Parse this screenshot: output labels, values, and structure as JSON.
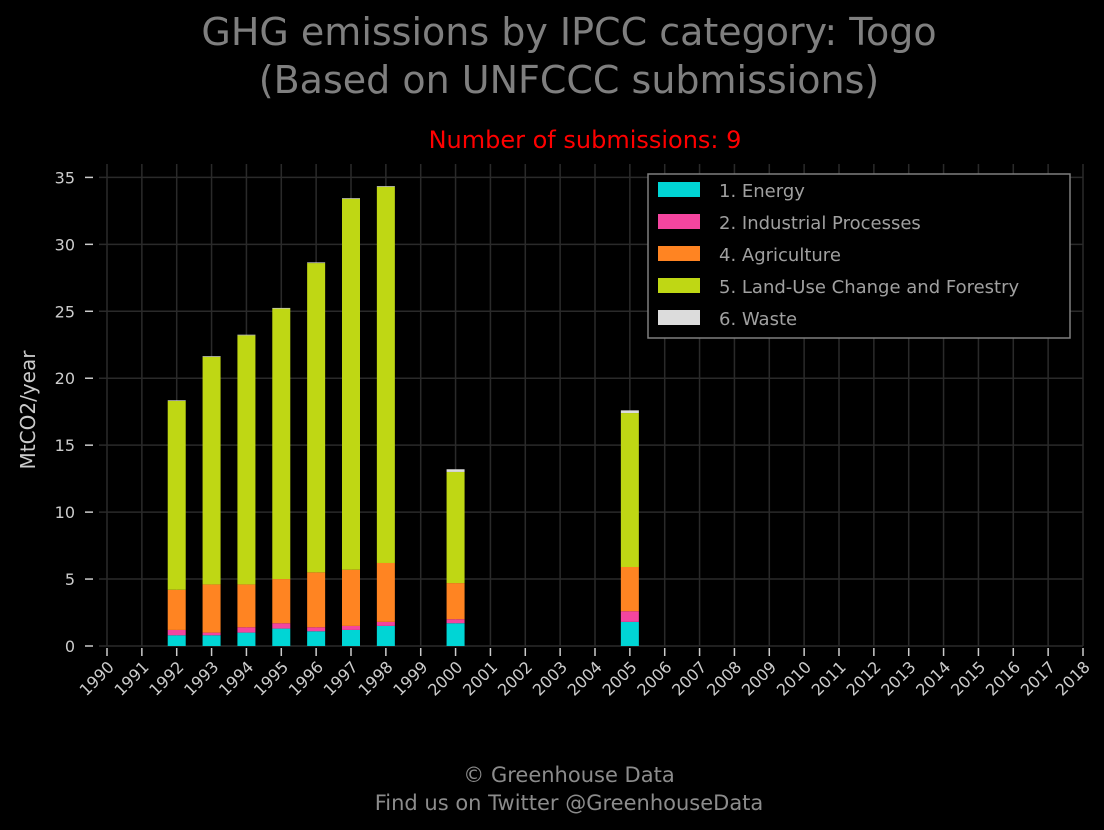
{
  "chart_data": {
    "type": "bar",
    "stacked": true,
    "title_line1": "GHG emissions by IPCC category: Togo",
    "title_line2": "(Based on UNFCCC submissions)",
    "subtitle": "Number of submissions: 9",
    "ylabel": "MtCO2/year",
    "ylim": [
      0,
      36
    ],
    "yticks": [
      0,
      5,
      10,
      15,
      20,
      25,
      30,
      35
    ],
    "grid": true,
    "legend_position": "top-right",
    "categories": [
      "1990",
      "1991",
      "1992",
      "1993",
      "1994",
      "1995",
      "1996",
      "1997",
      "1998",
      "1999",
      "2000",
      "2001",
      "2002",
      "2003",
      "2004",
      "2005",
      "2006",
      "2007",
      "2008",
      "2009",
      "2010",
      "2011",
      "2012",
      "2013",
      "2014",
      "2015",
      "2016",
      "2017",
      "2018"
    ],
    "series": [
      {
        "name": "1. Energy",
        "color": "#00d5d5",
        "values": [
          0,
          0,
          0.8,
          0.8,
          1.0,
          1.3,
          1.1,
          1.2,
          1.5,
          0,
          1.7,
          0,
          0,
          0,
          0,
          1.8,
          0,
          0,
          0,
          0,
          0,
          0,
          0,
          0,
          0,
          0,
          0,
          0,
          0
        ]
      },
      {
        "name": "2. Industrial Processes",
        "color": "#f4459f",
        "values": [
          0,
          0,
          0.4,
          0.2,
          0.4,
          0.4,
          0.3,
          0.3,
          0.3,
          0,
          0.3,
          0,
          0,
          0,
          0,
          0.8,
          0,
          0,
          0,
          0,
          0,
          0,
          0,
          0,
          0,
          0,
          0,
          0,
          0
        ]
      },
      {
        "name": "4. Agriculture",
        "color": "#ff8422",
        "values": [
          0,
          0,
          3.0,
          3.6,
          3.2,
          3.3,
          4.1,
          4.2,
          4.4,
          0,
          2.7,
          0,
          0,
          0,
          0,
          3.3,
          0,
          0,
          0,
          0,
          0,
          0,
          0,
          0,
          0,
          0,
          0,
          0,
          0
        ]
      },
      {
        "name": "5. Land-Use Change and Forestry",
        "color": "#bfd714",
        "values": [
          0,
          0,
          14.1,
          17.0,
          18.6,
          20.2,
          23.1,
          27.7,
          28.1,
          0,
          8.3,
          0,
          0,
          0,
          0,
          11.5,
          0,
          0,
          0,
          0,
          0,
          0,
          0,
          0,
          0,
          0,
          0,
          0,
          0
        ]
      },
      {
        "name": "6. Waste",
        "color": "#dcdcdc",
        "values": [
          0,
          0,
          0.05,
          0.05,
          0.05,
          0.05,
          0.05,
          0.05,
          0.05,
          0,
          0.2,
          0,
          0,
          0,
          0,
          0.2,
          0,
          0,
          0,
          0,
          0,
          0,
          0,
          0,
          0,
          0,
          0,
          0,
          0
        ]
      }
    ]
  },
  "footer": {
    "line1": "© Greenhouse Data",
    "line2": "Find us on Twitter @GreenhouseData"
  }
}
